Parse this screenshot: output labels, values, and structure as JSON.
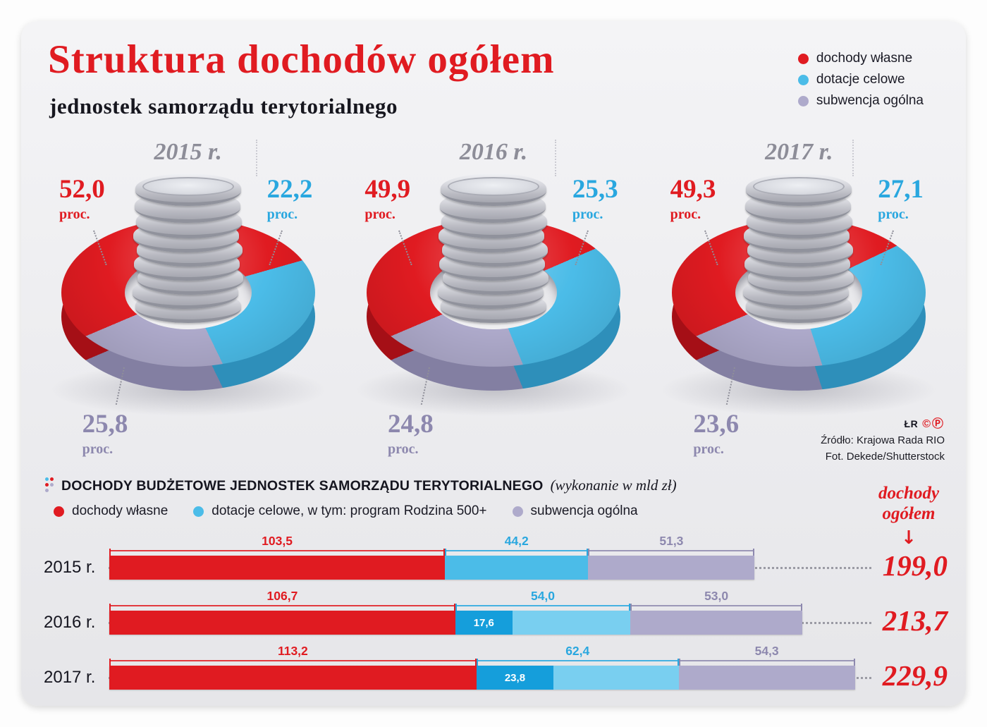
{
  "header": {
    "title": "Struktura dochodów ogółem",
    "subtitle": "jednostek samorządu terytorialnego"
  },
  "colors": {
    "red": "#e01b21",
    "red_side": "#a50f16",
    "blue": "#4bbce8",
    "blue_light": "#79cff0",
    "blue_dark": "#159edb",
    "blue_side": "#2e8fba",
    "blue_text": "#29a7df",
    "purple": "#aeaacb",
    "purple_side": "#837fa2",
    "purple_text": "#8d88ae"
  },
  "legend_top": {
    "items": [
      {
        "label": "dochody własne",
        "dot": "red"
      },
      {
        "label": "dotacje celowe",
        "dot": "blue"
      },
      {
        "label": "subwencja ogólna",
        "dot": "purple"
      }
    ]
  },
  "donuts": [
    {
      "year": "2015 r.",
      "red": "52,0",
      "blue": "22,2",
      "purple": "25,8",
      "unit": "proc."
    },
    {
      "year": "2016 r.",
      "red": "49,9",
      "blue": "25,3",
      "purple": "24,8",
      "unit": "proc."
    },
    {
      "year": "2017 r.",
      "red": "49,3",
      "blue": "27,1",
      "purple": "23,6",
      "unit": "proc."
    }
  ],
  "credits": {
    "initials": "ŁR",
    "marks": "©Ⓟ",
    "source": "Źródło: Krajowa Rada RIO",
    "photo": "Fot. Dekede/Shutterstock"
  },
  "bar_section": {
    "title": "DOCHODY BUDŻETOWE JEDNOSTEK SAMORZĄDU TERYTORIALNEGO",
    "note": "(wykonanie w mld zł)",
    "legend": [
      {
        "label": "dochody własne",
        "dot": "red"
      },
      {
        "label": "dotacje celowe, w tym: program Rodzina 500+",
        "dot": "blue"
      },
      {
        "label": "subwencja ogólna",
        "dot": "purple"
      }
    ],
    "total_header": {
      "line1": "dochody",
      "line2": "ogółem",
      "arrow": "↓"
    },
    "rows": [
      {
        "year": "2015 r.",
        "red": "103,5",
        "blue": "44,2",
        "blue_inner": null,
        "purple": "51,3",
        "total": "199,0"
      },
      {
        "year": "2016 r.",
        "red": "106,7",
        "blue": "54,0",
        "blue_inner": "17,6",
        "purple": "53,0",
        "total": "213,7"
      },
      {
        "year": "2017 r.",
        "red": "113,2",
        "blue": "62,4",
        "blue_inner": "23,8",
        "purple": "54,3",
        "total": "229,9"
      }
    ]
  },
  "chart_data": [
    {
      "type": "pie",
      "title": "2015 r.",
      "labels": [
        "dochody własne",
        "dotacje celowe",
        "subwencja ogólna"
      ],
      "values": [
        52.0,
        22.2,
        25.8
      ],
      "unit": "proc."
    },
    {
      "type": "pie",
      "title": "2016 r.",
      "labels": [
        "dochody własne",
        "dotacje celowe",
        "subwencja ogólna"
      ],
      "values": [
        49.9,
        25.3,
        24.8
      ],
      "unit": "proc."
    },
    {
      "type": "pie",
      "title": "2017 r.",
      "labels": [
        "dochody własne",
        "dotacje celowe",
        "subwencja ogólna"
      ],
      "values": [
        49.3,
        27.1,
        23.6
      ],
      "unit": "proc."
    },
    {
      "type": "bar",
      "title": "Dochody budżetowe jednostek samorządu terytorialnego (wykonanie w mld zł)",
      "orientation": "horizontal",
      "stacked": true,
      "categories": [
        "2015 r.",
        "2016 r.",
        "2017 r."
      ],
      "series": [
        {
          "name": "dochody własne",
          "values": [
            103.5,
            106.7,
            113.2
          ]
        },
        {
          "name": "dotacje celowe",
          "values": [
            44.2,
            54.0,
            62.4
          ]
        },
        {
          "name": "w tym: program Rodzina 500+",
          "values": [
            null,
            17.6,
            23.8
          ]
        },
        {
          "name": "subwencja ogólna",
          "values": [
            51.3,
            53.0,
            54.3
          ]
        }
      ],
      "totals": {
        "label": "dochody ogółem",
        "values": [
          199.0,
          213.7,
          229.9
        ]
      }
    }
  ]
}
